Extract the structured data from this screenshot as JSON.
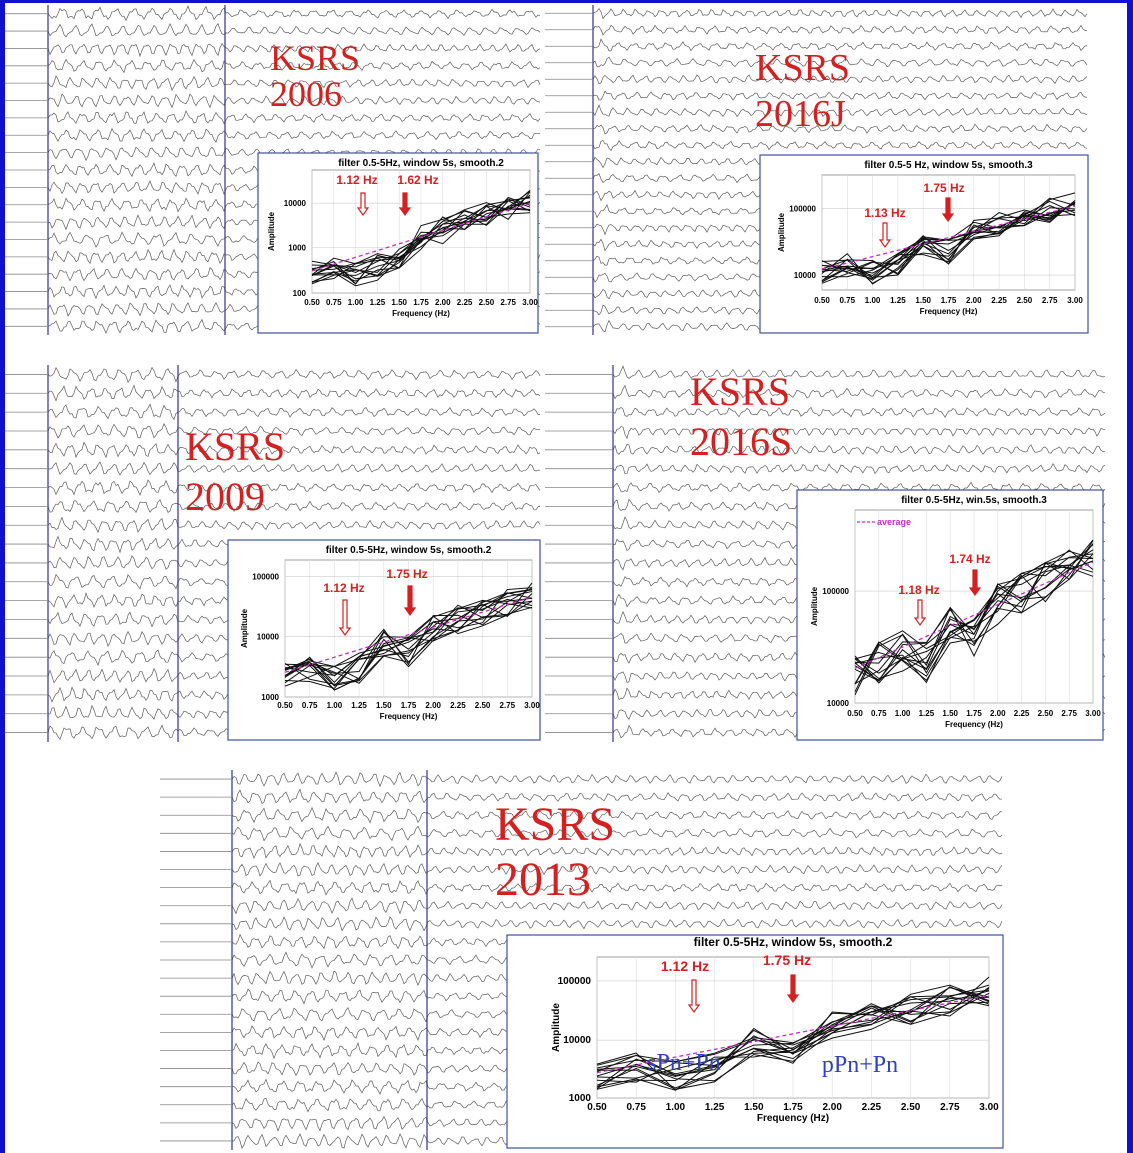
{
  "panels": [
    {
      "station": "KSRS",
      "year": "2006",
      "inset": {
        "title": "filter 0.5-5Hz, window 5s, smooth.2",
        "y_label": "Amplitude",
        "x_label": "Frequency (Hz)",
        "yticks": [
          "10000",
          "1000",
          "100"
        ],
        "xticks": [
          "0.50",
          "0.75",
          "1.00",
          "1.25",
          "1.50",
          "1.75",
          "2.00",
          "2.25",
          "2.50",
          "2.75",
          "3.00"
        ],
        "annotations": [
          "1.12 Hz",
          "1.62 Hz"
        ]
      }
    },
    {
      "station": "KSRS",
      "year": "2016J",
      "inset": {
        "title": "filter 0.5-5 Hz, window 5s, smooth.3",
        "y_label": "Amplitude",
        "x_label": "Frequency (Hz)",
        "yticks": [
          "100000",
          "10000"
        ],
        "xticks": [
          "0.50",
          "0.75",
          "1.00",
          "1.25",
          "1.50",
          "1.75",
          "2.00",
          "2.25",
          "2.50",
          "2.75",
          "3.00"
        ],
        "annotations": [
          "1.13 Hz",
          "1.75 Hz"
        ]
      }
    },
    {
      "station": "KSRS",
      "year": "2009",
      "inset": {
        "title": "filter 0.5-5Hz, window 5s, smooth.2",
        "y_label": "Amplitude",
        "x_label": "Frequency (Hz)",
        "yticks": [
          "100000",
          "10000",
          "1000"
        ],
        "xticks": [
          "0.50",
          "0.75",
          "1.00",
          "1.25",
          "1.50",
          "1.75",
          "2.00",
          "2.25",
          "2.50",
          "2.75",
          "3.00"
        ],
        "annotations": [
          "1.12 Hz",
          "1.75 Hz"
        ]
      }
    },
    {
      "station": "KSRS",
      "year": "2016S",
      "inset": {
        "title": "filter 0.5-5Hz, win.5s, smooth.3",
        "legend": "average",
        "y_label": "Amplitude",
        "x_label": "Frequency (Hz)",
        "yticks": [
          "100000",
          "10000"
        ],
        "xticks": [
          "0.50",
          "0.75",
          "1.00",
          "1.25",
          "1.50",
          "1.75",
          "2.00",
          "2.25",
          "2.50",
          "2.75",
          "3.00"
        ],
        "annotations": [
          "1.18 Hz",
          "1.74 Hz"
        ]
      }
    },
    {
      "station": "KSRS",
      "year": "2013",
      "inset": {
        "title": "filter 0.5-5Hz, window 5s, smooth.2",
        "y_label": "Amplitude",
        "x_label": "Frequency (Hz)",
        "yticks": [
          "100000",
          "10000",
          "1000"
        ],
        "xticks": [
          "0.50",
          "0.75",
          "1.00",
          "1.25",
          "1.50",
          "1.75",
          "2.00",
          "2.25",
          "2.50",
          "2.75",
          "3.00"
        ],
        "annotations": [
          "1.12 Hz",
          "1.75 Hz"
        ],
        "phases": [
          "sPn+Pn",
          "pPn+Pn"
        ]
      }
    }
  ]
}
